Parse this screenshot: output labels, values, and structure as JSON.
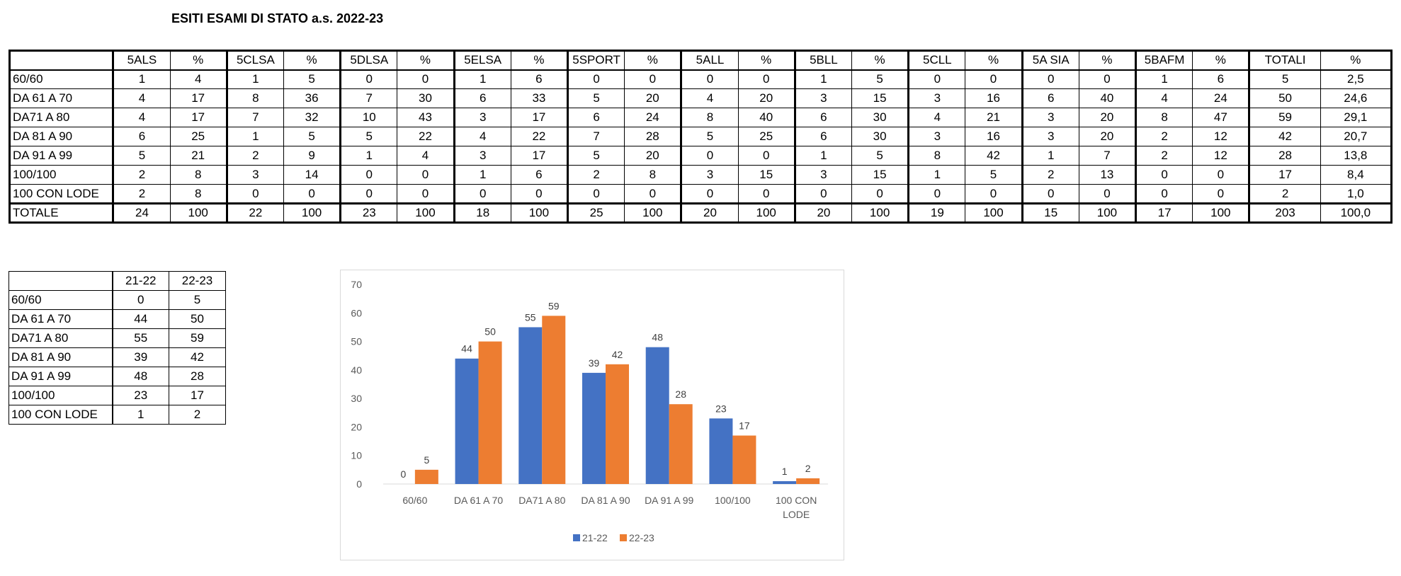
{
  "title": "ESITI ESAMI DI STATO a.s. 2022-23",
  "main_table": {
    "header": [
      "",
      "5ALS",
      "%",
      "5CLSA",
      "%",
      "5DLSA",
      "%",
      "5ELSA",
      "%",
      "5SPORT",
      "%",
      "5ALL",
      "%",
      "5BLL",
      "%",
      "5CLL",
      "%",
      "5A SIA",
      "%",
      "5BAFM",
      "%",
      "TOTALI",
      "%"
    ],
    "rows": [
      [
        "60/60",
        "1",
        "4",
        "1",
        "5",
        "0",
        "0",
        "1",
        "6",
        "0",
        "0",
        "0",
        "0",
        "1",
        "5",
        "0",
        "0",
        "0",
        "0",
        "1",
        "6",
        "5",
        "2,5"
      ],
      [
        "DA 61 A 70",
        "4",
        "17",
        "8",
        "36",
        "7",
        "30",
        "6",
        "33",
        "5",
        "20",
        "4",
        "20",
        "3",
        "15",
        "3",
        "16",
        "6",
        "40",
        "4",
        "24",
        "50",
        "24,6"
      ],
      [
        "DA71 A 80",
        "4",
        "17",
        "7",
        "32",
        "10",
        "43",
        "3",
        "17",
        "6",
        "24",
        "8",
        "40",
        "6",
        "30",
        "4",
        "21",
        "3",
        "20",
        "8",
        "47",
        "59",
        "29,1"
      ],
      [
        "DA 81 A 90",
        "6",
        "25",
        "1",
        "5",
        "5",
        "22",
        "4",
        "22",
        "7",
        "28",
        "5",
        "25",
        "6",
        "30",
        "3",
        "16",
        "3",
        "20",
        "2",
        "12",
        "42",
        "20,7"
      ],
      [
        "DA 91 A 99",
        "5",
        "21",
        "2",
        "9",
        "1",
        "4",
        "3",
        "17",
        "5",
        "20",
        "0",
        "0",
        "1",
        "5",
        "8",
        "42",
        "1",
        "7",
        "2",
        "12",
        "28",
        "13,8"
      ],
      [
        "100/100",
        "2",
        "8",
        "3",
        "14",
        "0",
        "0",
        "1",
        "6",
        "2",
        "8",
        "3",
        "15",
        "3",
        "15",
        "1",
        "5",
        "2",
        "13",
        "0",
        "0",
        "17",
        "8,4"
      ],
      [
        "100 CON LODE",
        "2",
        "8",
        "0",
        "0",
        "0",
        "0",
        "0",
        "0",
        "0",
        "0",
        "0",
        "0",
        "0",
        "0",
        "0",
        "0",
        "0",
        "0",
        "0",
        "0",
        "2",
        "1,0"
      ],
      [
        "TOTALE",
        "24",
        "100",
        "22",
        "100",
        "23",
        "100",
        "18",
        "100",
        "25",
        "100",
        "20",
        "100",
        "20",
        "100",
        "19",
        "100",
        "15",
        "100",
        "17",
        "100",
        "203",
        "100,0"
      ]
    ]
  },
  "comparison_table": {
    "header": [
      "",
      "21-22",
      "22-23"
    ],
    "rows": [
      [
        "60/60",
        "0",
        "5"
      ],
      [
        "DA 61 A 70",
        "44",
        "50"
      ],
      [
        "DA71 A 80",
        "55",
        "59"
      ],
      [
        "DA 81 A 90",
        "39",
        "42"
      ],
      [
        "DA 91 A 99",
        "48",
        "28"
      ],
      [
        "100/100",
        "23",
        "17"
      ],
      [
        "100 CON LODE",
        "1",
        "2"
      ]
    ]
  },
  "chart_data": {
    "type": "bar",
    "categories": [
      "60/60",
      "DA 61 A 70",
      "DA71 A 80",
      "DA 81 A 90",
      "DA 91 A 99",
      "100/100",
      "100 CON LODE"
    ],
    "category_lines": [
      [
        "60/60"
      ],
      [
        "DA 61 A 70"
      ],
      [
        "DA71 A 80"
      ],
      [
        "DA 81 A 90"
      ],
      [
        "DA 91 A 99"
      ],
      [
        "100/100"
      ],
      [
        "100 CON",
        "LODE"
      ]
    ],
    "series": [
      {
        "name": "21-22",
        "values": [
          0,
          44,
          55,
          39,
          48,
          23,
          1
        ],
        "color": "#4472c4"
      },
      {
        "name": "22-23",
        "values": [
          5,
          50,
          59,
          42,
          28,
          17,
          2
        ],
        "color": "#ed7d31"
      }
    ],
    "ylim": [
      0,
      70
    ],
    "yticks": [
      0,
      10,
      20,
      30,
      40,
      50,
      60,
      70
    ],
    "data_labels": true,
    "grid": false,
    "legend": "bottom"
  }
}
